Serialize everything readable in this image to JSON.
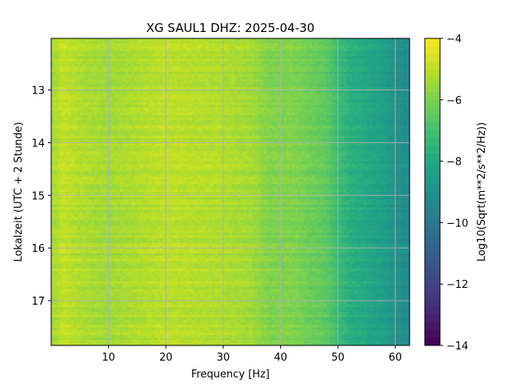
{
  "chart_data": {
    "type": "heatmap",
    "title": "XG SAUL1  DHZ: 2025-04-30",
    "xlabel": "Frequency [Hz]",
    "ylabel": "Lokalzeit (UTC + 2 Stunde)",
    "colorbar_label": "Log10(Sqrt(m**2/s**2/Hz))",
    "colormap": "viridis",
    "xlim": [
      0,
      62.5
    ],
    "ylim": [
      17.85,
      12.02
    ],
    "y_inverted": true,
    "xticks": [
      10,
      20,
      30,
      40,
      50,
      60
    ],
    "xtick_labels": [
      "10",
      "20",
      "30",
      "40",
      "50",
      "60"
    ],
    "yticks": [
      13,
      14,
      15,
      16,
      17
    ],
    "ytick_labels": [
      "13",
      "14",
      "15",
      "16",
      "17"
    ],
    "clim": [
      -14,
      -4
    ],
    "colorbar_ticks": [
      -4,
      -6,
      -8,
      -10,
      -12,
      -14
    ],
    "colorbar_tick_labels": [
      "−4",
      "−6",
      "−8",
      "−10",
      "−12",
      "−14"
    ],
    "grid": true,
    "frequency_profile": {
      "frequency_hz": [
        0.5,
        2,
        5,
        10,
        15,
        20,
        25,
        30,
        35,
        38,
        40,
        42,
        45,
        48,
        50,
        52,
        55,
        58,
        60,
        62.5
      ],
      "log10_amplitude": [
        -5.3,
        -4.9,
        -5.2,
        -5.4,
        -5.2,
        -5.0,
        -5.1,
        -5.2,
        -5.4,
        -5.9,
        -5.9,
        -5.9,
        -6.2,
        -6.5,
        -7.2,
        -7.7,
        -8.0,
        -8.4,
        -8.9,
        -9.2
      ]
    }
  },
  "colors": {
    "grid": "#b0b0b0",
    "frame": "#000000",
    "background": "#ffffff"
  }
}
